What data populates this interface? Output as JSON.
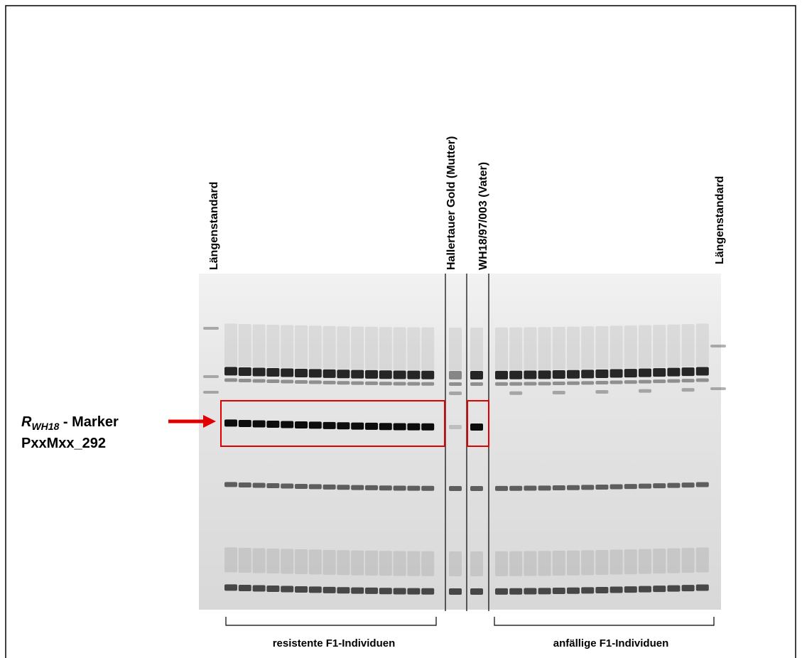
{
  "lanes": {
    "left_standard": "Längenstandard",
    "mother": "Hallertauer Gold  (Mutter)",
    "father": "WH18/97/003 (Vater)",
    "right_standard": "Längenstandard"
  },
  "marker": {
    "symbol": "R",
    "subscript": "WH18",
    "suffix": " - Marker",
    "name": "PxxMxx_292"
  },
  "groups": {
    "resistant": "resistente F1-Individuen",
    "susceptible": "anfällige F1-Individuen"
  }
}
